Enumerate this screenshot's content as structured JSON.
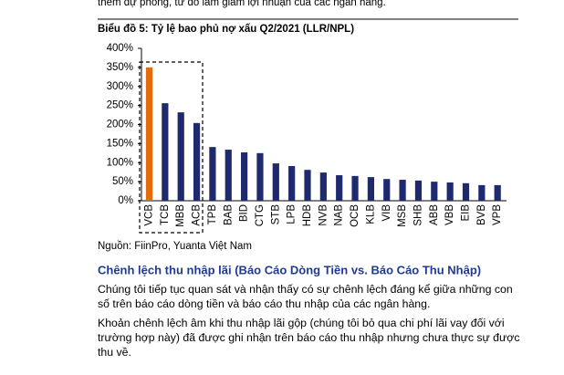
{
  "top_text": "thêm dự phòng, từ đó làm giảm lợi nhuận của các ngân hàng.",
  "chart_data": {
    "type": "bar",
    "title": "Biểu đồ 5: Tỷ lệ bao phủ nợ xấu Q2/2021 (LLR/NPL)",
    "categories": [
      "VCB",
      "TCB",
      "MBB",
      "ACB",
      "TPB",
      "BAB",
      "BID",
      "CTG",
      "STB",
      "LPB",
      "HDB",
      "NVB",
      "NAB",
      "OCB",
      "KLB",
      "VIB",
      "MSB",
      "SHB",
      "ABB",
      "VBB",
      "EIB",
      "BVB",
      "VPB"
    ],
    "values": [
      350,
      256,
      232,
      204,
      141,
      134,
      127,
      125,
      98,
      91,
      81,
      74,
      67,
      65,
      62,
      57,
      55,
      53,
      50,
      48,
      46,
      41,
      41
    ],
    "colors": [
      "#e46c0a",
      "#1f2a6e",
      "#1f2a6e",
      "#1f2a6e",
      "#1f2a6e",
      "#1f2a6e",
      "#1f2a6e",
      "#1f2a6e",
      "#1f2a6e",
      "#1f2a6e",
      "#1f2a6e",
      "#1f2a6e",
      "#1f2a6e",
      "#1f2a6e",
      "#1f2a6e",
      "#1f2a6e",
      "#1f2a6e",
      "#1f2a6e",
      "#1f2a6e",
      "#1f2a6e",
      "#1f2a6e",
      "#1f2a6e",
      "#1f2a6e"
    ],
    "ylim": [
      0,
      400
    ],
    "yticks": [
      {
        "value": 0,
        "label": "0%"
      },
      {
        "value": 50,
        "label": "50%"
      },
      {
        "value": 100,
        "label": "100%"
      },
      {
        "value": 150,
        "label": "150%"
      },
      {
        "value": 200,
        "label": "200%"
      },
      {
        "value": 250,
        "label": "250%"
      },
      {
        "value": 300,
        "label": "300%"
      },
      {
        "value": 350,
        "label": "350%"
      },
      {
        "value": 400,
        "label": "400%"
      }
    ]
  },
  "source": "Nguồn: FiinPro, Yuanta Việt Nam",
  "heading": "Chênh lệch thu nhập lãi (Báo Cáo Dòng Tiền vs. Báo Cáo Thu Nhập)",
  "paragraphs": [
    "Chúng tôi tiếp tục quan sát và nhận thấy có sự chênh lệch đáng kể giữa những con số trên báo cáo dòng tiền và báo cáo thu nhập của các ngân hàng.",
    "Khoản chênh lệch âm khi thu nhập lãi gộp (chúng tôi bỏ qua chi phí lãi vay đối với trường hợp này) đã được ghi nhận trên báo cáo thu nhập nhưng chưa thực sự được thu về."
  ]
}
